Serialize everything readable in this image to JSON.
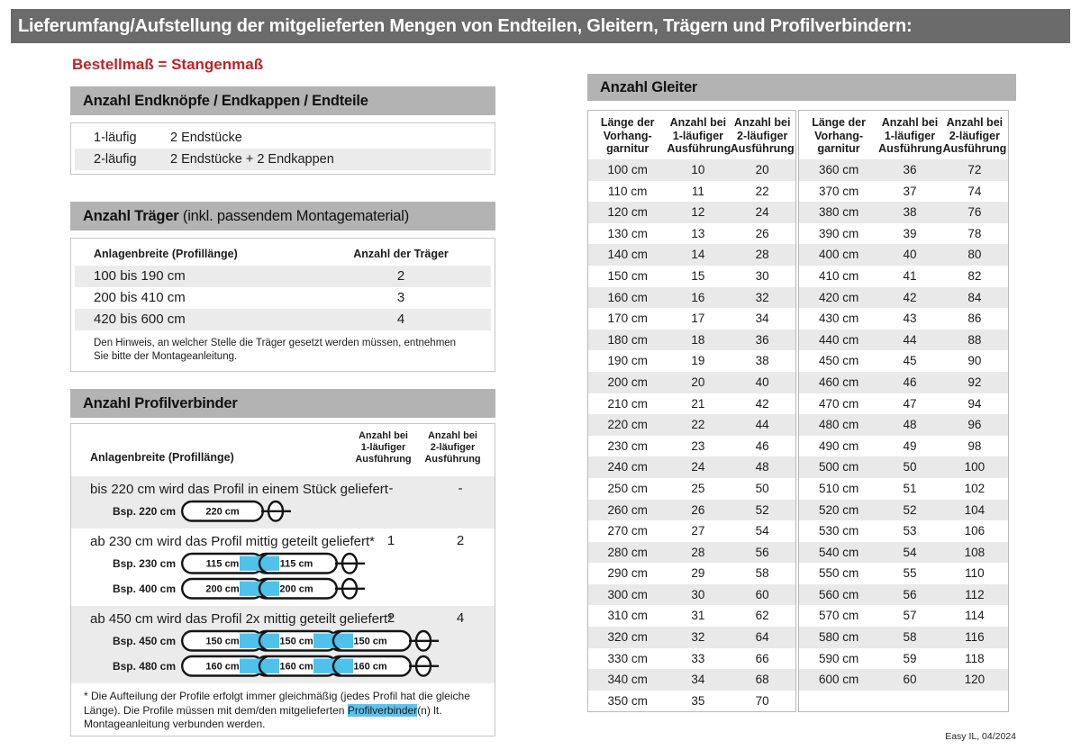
{
  "title": "Lieferumfang/Aufstellung der mitgelieferten Mengen von Endteilen, Gleitern, Trägern und Profilverbindern:",
  "subtitle": "Bestellmaß = Stangenmaß",
  "footer": "Easy IL, 04/2024",
  "colors": {
    "title_bar_gray": "#6b6b6b",
    "section_bar_gray": "#b3b3b3",
    "stripe_gray": "#ebebeb",
    "accent_red": "#c22027",
    "connector_blue": "#4fc2ec"
  },
  "endteile": {
    "header": "Anzahl Endknöpfe / Endkappen / Endteile",
    "rows": [
      {
        "label": "1-läufig",
        "value": "2 Endstücke"
      },
      {
        "label": "2-läufig",
        "value": "2 Endstücke + 2 Endkappen"
      }
    ]
  },
  "traeger": {
    "header_bold": "Anzahl Träger",
    "header_rest": " (inkl. passendem Montagematerial)",
    "col1": "Anlagenbreite (Profillänge)",
    "col2": "Anzahl der Träger",
    "rows": [
      {
        "range": "100 bis 190 cm",
        "count": "2"
      },
      {
        "range": "200 bis 410 cm",
        "count": "3"
      },
      {
        "range": "420 bis 600 cm",
        "count": "4"
      }
    ],
    "note": "Den Hinweis, an welcher Stelle die Träger gesetzt werden müssen, entnehmen Sie bitte der Montageanleitung."
  },
  "profilverbinder": {
    "header": "Anzahl Profilverbinder",
    "col1": "Anlagenbreite (Profillänge)",
    "col2_lines": [
      "Anzahl bei",
      "1-läufiger",
      "Ausführung"
    ],
    "col3_lines": [
      "Anzahl bei",
      "2-läufiger",
      "Ausführung"
    ],
    "rows": [
      {
        "text": "bis 220 cm wird das Profil in einem Stück geliefert",
        "count1": "-",
        "count2": "-",
        "examples": [
          {
            "label": "Bsp. 220 cm",
            "segments": [
              "220 cm"
            ]
          }
        ]
      },
      {
        "text": "ab 230 cm wird das Profil mittig geteilt geliefert*",
        "count1": "1",
        "count2": "2",
        "examples": [
          {
            "label": "Bsp. 230 cm",
            "segments": [
              "115 cm",
              "115 cm"
            ]
          },
          {
            "label": "Bsp. 400 cm",
            "segments": [
              "200 cm",
              "200 cm"
            ]
          }
        ]
      },
      {
        "text": "ab 450 cm wird das Profil 2x mittig geteilt geliefert*",
        "count1": "2",
        "count2": "4",
        "examples": [
          {
            "label": "Bsp. 450 cm",
            "segments": [
              "150 cm",
              "150 cm",
              "150 cm"
            ]
          },
          {
            "label": "Bsp. 480 cm",
            "segments": [
              "160 cm",
              "160 cm",
              "160 cm"
            ]
          }
        ]
      }
    ],
    "footnote_pre": "* Die Aufteilung der Profile erfolgt immer gleichmäßig (jedes Profil hat die gleiche Länge). Die Profile müssen mit dem/den mitgelieferten ",
    "footnote_highlight": "Profilverbinder",
    "footnote_post": "(n) lt. Montageanleitung verbunden werden."
  },
  "gleiter": {
    "header": "Anzahl Gleiter",
    "col_headers": [
      [
        "Länge der",
        "Vorhang-",
        "garnitur"
      ],
      [
        "Anzahl bei",
        "1-läufiger",
        "Ausführung"
      ],
      [
        "Anzahl bei",
        "2-läufiger",
        "Ausführung"
      ]
    ],
    "left_rows": [
      [
        "100 cm",
        "10",
        "20"
      ],
      [
        "110 cm",
        "11",
        "22"
      ],
      [
        "120 cm",
        "12",
        "24"
      ],
      [
        "130 cm",
        "13",
        "26"
      ],
      [
        "140 cm",
        "14",
        "28"
      ],
      [
        "150 cm",
        "15",
        "30"
      ],
      [
        "160 cm",
        "16",
        "32"
      ],
      [
        "170 cm",
        "17",
        "34"
      ],
      [
        "180 cm",
        "18",
        "36"
      ],
      [
        "190 cm",
        "19",
        "38"
      ],
      [
        "200 cm",
        "20",
        "40"
      ],
      [
        "210 cm",
        "21",
        "42"
      ],
      [
        "220 cm",
        "22",
        "44"
      ],
      [
        "230 cm",
        "23",
        "46"
      ],
      [
        "240 cm",
        "24",
        "48"
      ],
      [
        "250 cm",
        "25",
        "50"
      ],
      [
        "260 cm",
        "26",
        "52"
      ],
      [
        "270 cm",
        "27",
        "54"
      ],
      [
        "280 cm",
        "28",
        "56"
      ],
      [
        "290 cm",
        "29",
        "58"
      ],
      [
        "300 cm",
        "30",
        "60"
      ],
      [
        "310 cm",
        "31",
        "62"
      ],
      [
        "320 cm",
        "32",
        "64"
      ],
      [
        "330 cm",
        "33",
        "66"
      ],
      [
        "340 cm",
        "34",
        "68"
      ],
      [
        "350 cm",
        "35",
        "70"
      ]
    ],
    "right_rows": [
      [
        "360 cm",
        "36",
        "72"
      ],
      [
        "370 cm",
        "37",
        "74"
      ],
      [
        "380 cm",
        "38",
        "76"
      ],
      [
        "390 cm",
        "39",
        "78"
      ],
      [
        "400 cm",
        "40",
        "80"
      ],
      [
        "410 cm",
        "41",
        "82"
      ],
      [
        "420 cm",
        "42",
        "84"
      ],
      [
        "430 cm",
        "43",
        "86"
      ],
      [
        "440 cm",
        "44",
        "88"
      ],
      [
        "450 cm",
        "45",
        "90"
      ],
      [
        "460 cm",
        "46",
        "92"
      ],
      [
        "470 cm",
        "47",
        "94"
      ],
      [
        "480 cm",
        "48",
        "96"
      ],
      [
        "490 cm",
        "49",
        "98"
      ],
      [
        "500 cm",
        "50",
        "100"
      ],
      [
        "510 cm",
        "51",
        "102"
      ],
      [
        "520 cm",
        "52",
        "104"
      ],
      [
        "530 cm",
        "53",
        "106"
      ],
      [
        "540 cm",
        "54",
        "108"
      ],
      [
        "550 cm",
        "55",
        "110"
      ],
      [
        "560 cm",
        "56",
        "112"
      ],
      [
        "570 cm",
        "57",
        "114"
      ],
      [
        "580 cm",
        "58",
        "116"
      ],
      [
        "590 cm",
        "59",
        "118"
      ],
      [
        "600 cm",
        "60",
        "120"
      ]
    ]
  }
}
